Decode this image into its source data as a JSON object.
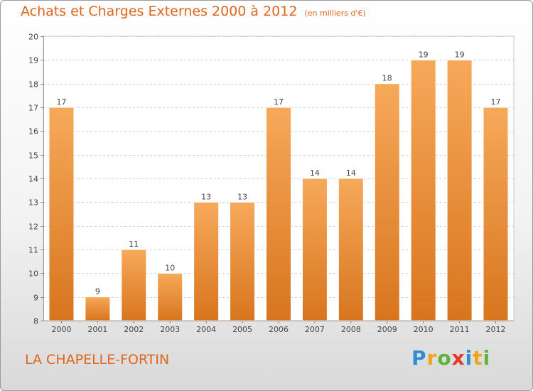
{
  "title": "Achats et Charges Externes 2000 à 2012",
  "unit": "(en milliers d'€)",
  "commune": "LA CHAPELLE-FORTIN",
  "logo": {
    "letters": [
      "P",
      "r",
      "o",
      "x",
      "i",
      "t",
      "i"
    ]
  },
  "colors": {
    "bar_top": "#f6a95a",
    "bar_bottom": "#d8751f",
    "accent": "#e0651d"
  },
  "chart_data": {
    "type": "bar",
    "categories": [
      "2000",
      "2001",
      "2002",
      "2003",
      "2004",
      "2005",
      "2006",
      "2007",
      "2008",
      "2009",
      "2010",
      "2011",
      "2012"
    ],
    "values": [
      17,
      9,
      11,
      10,
      13,
      13,
      17,
      14,
      14,
      18,
      19,
      19,
      17
    ],
    "ylim": [
      8,
      20
    ],
    "yticks": [
      8,
      9,
      10,
      11,
      12,
      13,
      14,
      15,
      16,
      17,
      18,
      19,
      20
    ],
    "grid": true,
    "data_labels": true
  }
}
